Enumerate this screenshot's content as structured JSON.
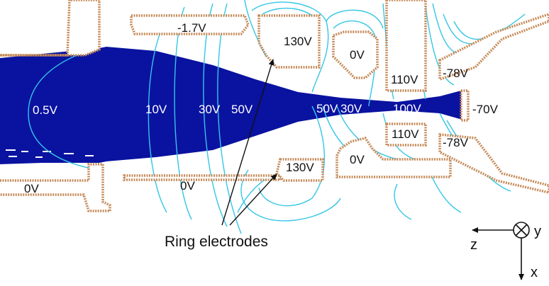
{
  "colors": {
    "background": "#ffffff",
    "beam": "#0a12a0",
    "field_lines": "#34c6e6",
    "electrode_outline": "#c58a58",
    "electrode_fill": "#ffffff",
    "text_on_beam": "#ffffff",
    "text": "#111111"
  },
  "electrode_labels": {
    "left_top": "-1.7V",
    "top_bar": "-1.7V",
    "ring_top": "130V",
    "center_top": "0V",
    "upper_right_block": "110V",
    "lower_right_block": "110V",
    "right_top": "-78V",
    "right_bottom": "-78V",
    "exit": "-70V",
    "ring_bottom": "130V",
    "center_bottom": "0V",
    "left_bottom": "0V",
    "bottom_bar": "0V"
  },
  "potential_labels": {
    "p05": "0.5V",
    "p10": "10V",
    "p30a": "30V",
    "p50a": "50V",
    "p50b": "50V",
    "p30b": "30V",
    "p100": "100V"
  },
  "caption": "Ring electrodes",
  "axes": {
    "z": "z",
    "y": "y",
    "x": "x",
    "y_icon": "cross-in-circle-icon"
  }
}
